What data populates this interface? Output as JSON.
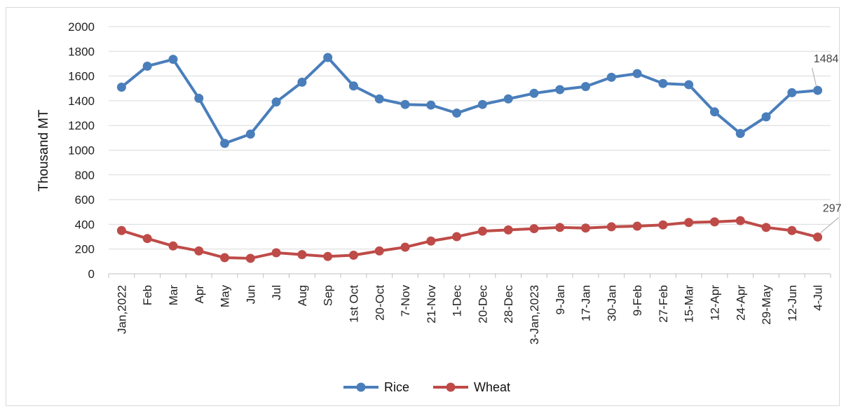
{
  "chart_data": {
    "type": "line",
    "ylabel": "Thousand MT",
    "xlabel": "",
    "ylim": [
      0,
      2000
    ],
    "yticks": [
      0,
      200,
      400,
      600,
      800,
      1000,
      1200,
      1400,
      1600,
      1800,
      2000
    ],
    "grid": "horizontal",
    "legend_position": "bottom",
    "categories": [
      "Jan,2022",
      "Feb",
      "Mar",
      "Apr",
      "May",
      "Jun",
      "Jul",
      "Aug",
      "Sep",
      "1st Oct",
      "20-Oct",
      "7-Nov",
      "21-Nov",
      "1-Dec",
      "20-Dec",
      "28-Dec",
      "3-Jan,2023",
      "9-Jan",
      "17-Jan",
      "30-Jan",
      "9-Feb",
      "27-Feb",
      "15-Mar",
      "12-Apr",
      "24-Apr",
      "29-May",
      "12-Jun",
      "4-Jul"
    ],
    "series": [
      {
        "name": "Rice",
        "color": "#4a7ebb",
        "values": [
          1510,
          1680,
          1735,
          1420,
          1055,
          1130,
          1390,
          1550,
          1750,
          1520,
          1415,
          1370,
          1365,
          1300,
          1370,
          1415,
          1460,
          1490,
          1515,
          1590,
          1620,
          1540,
          1530,
          1310,
          1135,
          1270,
          1465,
          1484
        ]
      },
      {
        "name": "Wheat",
        "color": "#be4b48",
        "values": [
          350,
          285,
          225,
          185,
          130,
          125,
          170,
          155,
          140,
          150,
          185,
          215,
          265,
          300,
          345,
          355,
          365,
          375,
          370,
          380,
          385,
          395,
          415,
          420,
          430,
          375,
          350,
          297
        ]
      }
    ],
    "annotations": [
      {
        "series": "Rice",
        "index": 27,
        "text": "1484"
      },
      {
        "series": "Wheat",
        "index": 27,
        "text": "297"
      }
    ]
  }
}
